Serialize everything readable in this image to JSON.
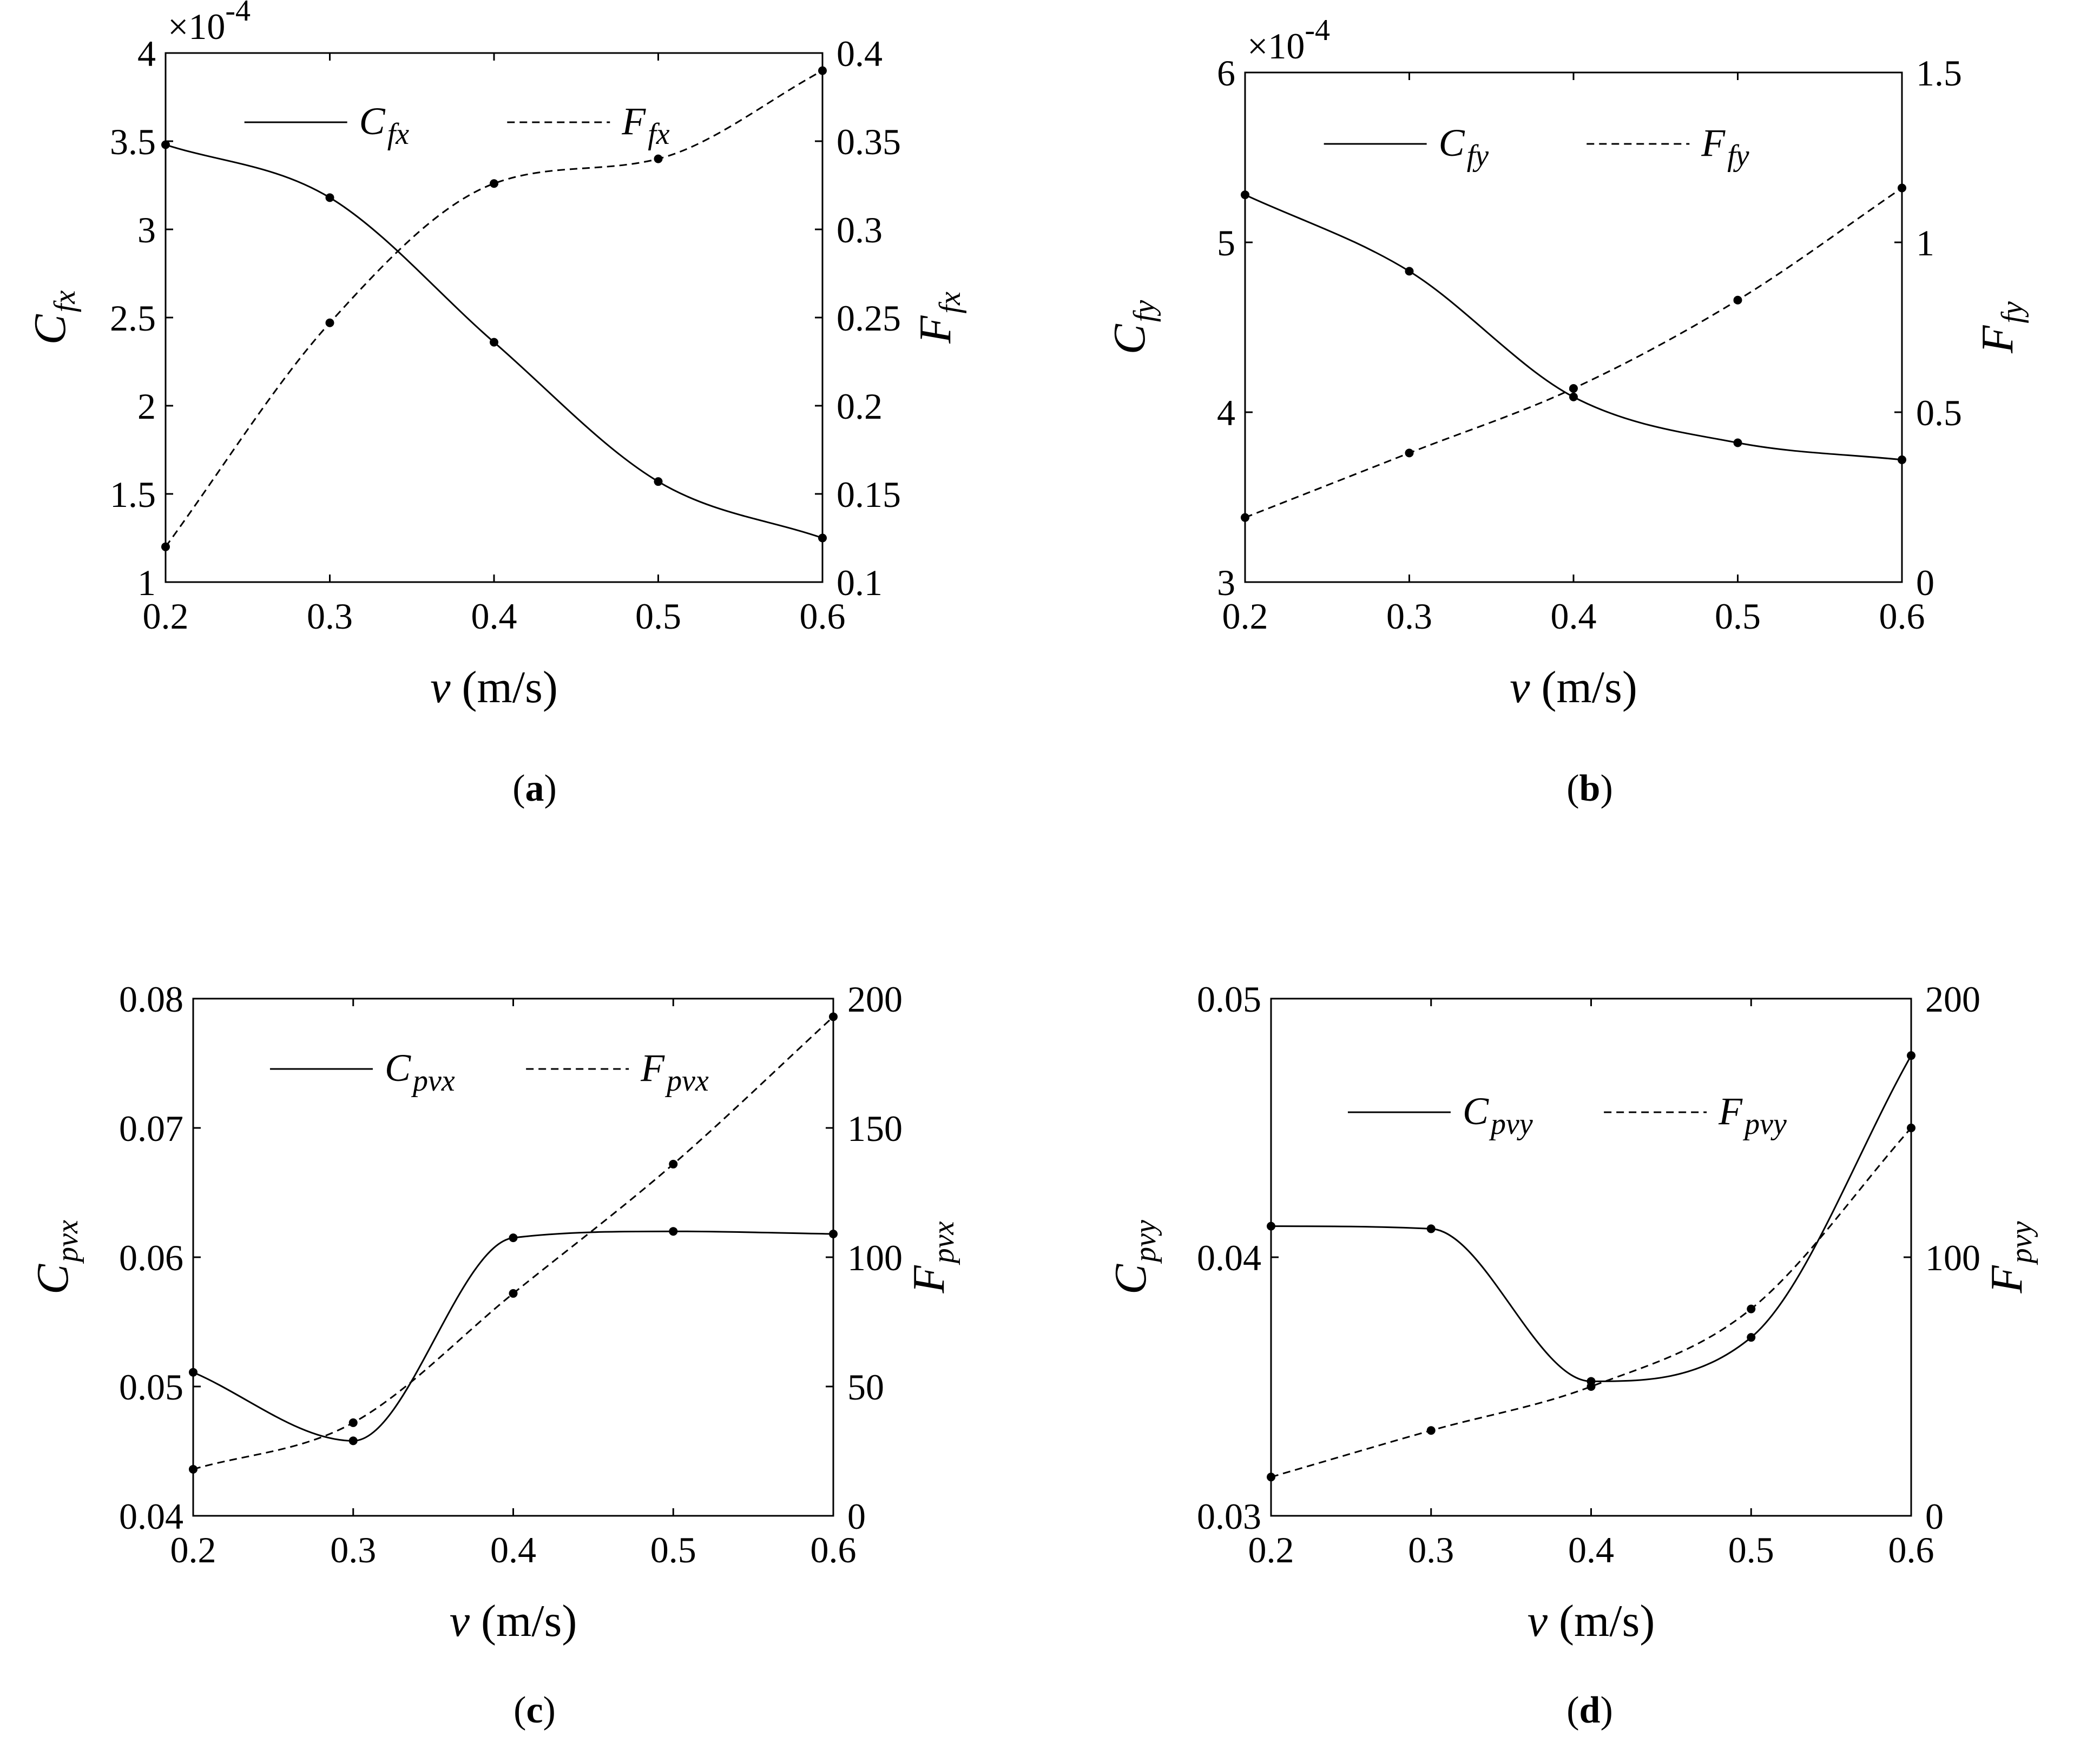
{
  "chart_data": [
    {
      "type": "line",
      "panel_label": "a",
      "x": [
        0.2,
        0.3,
        0.4,
        0.5,
        0.6
      ],
      "xlabel": {
        "var": "v",
        "unit": " (m/s)"
      },
      "xlim": [
        0.2,
        0.6
      ],
      "xticks": [
        "0.2",
        "0.3",
        "0.4",
        "0.5",
        "0.6"
      ],
      "left_axis": {
        "label": {
          "main": "C",
          "sub": "fx"
        },
        "ylim": [
          1,
          4
        ],
        "ticks": [
          1,
          1.5,
          2,
          2.5,
          3,
          3.5,
          4
        ],
        "tick_labels": [
          "1",
          "1.5",
          "2",
          "2.5",
          "3",
          "3.5",
          "4"
        ],
        "multiplier": {
          "base": "×10",
          "exponent": "-4"
        }
      },
      "right_axis": {
        "label": {
          "main": "F",
          "sub": "fx"
        },
        "ylim": [
          0.1,
          0.4
        ],
        "ticks": [
          0.1,
          0.15,
          0.2,
          0.25,
          0.3,
          0.35,
          0.4
        ],
        "tick_labels": [
          "0.1",
          "0.15",
          "0.2",
          "0.25",
          "0.3",
          "0.35",
          "0.4"
        ]
      },
      "series": [
        {
          "name": {
            "main": "C",
            "sub": "fx"
          },
          "axis": "left",
          "style": "solid",
          "values": [
            3.48,
            3.18,
            2.36,
            1.57,
            1.25
          ]
        },
        {
          "name": {
            "main": "F",
            "sub": "fx"
          },
          "axis": "right",
          "style": "dashed",
          "values": [
            0.12,
            0.247,
            0.326,
            0.34,
            0.39
          ]
        }
      ],
      "legend": "top"
    },
    {
      "type": "line",
      "panel_label": "b",
      "x": [
        0.2,
        0.3,
        0.4,
        0.5,
        0.6
      ],
      "xlabel": {
        "var": "v",
        "unit": " (m/s)"
      },
      "xlim": [
        0.2,
        0.6
      ],
      "xticks": [
        "0.2",
        "0.3",
        "0.4",
        "0.5",
        "0.6"
      ],
      "left_axis": {
        "label": {
          "main": "C",
          "sub": "fy"
        },
        "ylim": [
          3,
          6
        ],
        "ticks": [
          3,
          4,
          5,
          6
        ],
        "tick_labels": [
          "3",
          "4",
          "5",
          "6"
        ],
        "multiplier": {
          "base": "×10",
          "exponent": "-4"
        }
      },
      "right_axis": {
        "label": {
          "main": "F",
          "sub": "fy"
        },
        "ylim": [
          0,
          1.5
        ],
        "ticks": [
          0,
          0.5,
          1,
          1.5
        ],
        "tick_labels": [
          "0",
          "0.5",
          "1",
          "1.5"
        ]
      },
      "series": [
        {
          "name": {
            "main": "C",
            "sub": "fy"
          },
          "axis": "left",
          "style": "solid",
          "values": [
            5.28,
            4.83,
            4.09,
            3.82,
            3.72
          ]
        },
        {
          "name": {
            "main": "F",
            "sub": "fy"
          },
          "axis": "right",
          "style": "dashed",
          "values": [
            0.19,
            0.38,
            0.57,
            0.83,
            1.16
          ]
        }
      ],
      "legend": "top"
    },
    {
      "type": "line",
      "panel_label": "c",
      "x": [
        0.2,
        0.3,
        0.4,
        0.5,
        0.6
      ],
      "xlabel": {
        "var": "v",
        "unit": " (m/s)"
      },
      "xlim": [
        0.2,
        0.6
      ],
      "xticks": [
        "0.2",
        "0.3",
        "0.4",
        "0.5",
        "0.6"
      ],
      "left_axis": {
        "label": {
          "main": "C",
          "sub": "pvx"
        },
        "ylim": [
          0.04,
          0.08
        ],
        "ticks": [
          0.04,
          0.05,
          0.06,
          0.07,
          0.08
        ],
        "tick_labels": [
          "0.04",
          "0.05",
          "0.06",
          "0.07",
          "0.08"
        ]
      },
      "right_axis": {
        "label": {
          "main": "F",
          "sub": "pvx"
        },
        "ylim": [
          0,
          200
        ],
        "ticks": [
          0,
          50,
          100,
          150,
          200
        ],
        "tick_labels": [
          "0",
          "50",
          "100",
          "150",
          "200"
        ]
      },
      "series": [
        {
          "name": {
            "main": "C",
            "sub": "pvx"
          },
          "axis": "left",
          "style": "solid",
          "values": [
            0.0511,
            0.0458,
            0.0615,
            0.062,
            0.0618
          ]
        },
        {
          "name": {
            "main": "F",
            "sub": "pvx"
          },
          "axis": "right",
          "style": "dashed",
          "values": [
            18,
            36,
            86,
            136,
            193
          ]
        }
      ],
      "legend": "top"
    },
    {
      "type": "line",
      "panel_label": "d",
      "x": [
        0.2,
        0.3,
        0.4,
        0.5,
        0.6
      ],
      "xlabel": {
        "var": "v",
        "unit": " (m/s)"
      },
      "xlim": [
        0.2,
        0.6
      ],
      "xticks": [
        "0.2",
        "0.3",
        "0.4",
        "0.5",
        "0.6"
      ],
      "left_axis": {
        "label": {
          "main": "C",
          "sub": "pvy"
        },
        "ylim": [
          0.03,
          0.05
        ],
        "ticks": [
          0.03,
          0.04,
          0.05
        ],
        "tick_labels": [
          "0.03",
          "0.04",
          "0.05"
        ]
      },
      "right_axis": {
        "label": {
          "main": "F",
          "sub": "pvy"
        },
        "ylim": [
          0,
          200
        ],
        "ticks": [
          0,
          100,
          200
        ],
        "tick_labels": [
          "0",
          "100",
          "200"
        ]
      },
      "series": [
        {
          "name": {
            "main": "C",
            "sub": "pvy"
          },
          "axis": "left",
          "style": "solid",
          "values": [
            0.0412,
            0.0411,
            0.0352,
            0.0369,
            0.0478
          ]
        },
        {
          "name": {
            "main": "F",
            "sub": "pvy"
          },
          "axis": "right",
          "style": "dashed",
          "values": [
            15,
            33,
            50,
            80,
            150
          ]
        }
      ],
      "legend": "top"
    }
  ]
}
